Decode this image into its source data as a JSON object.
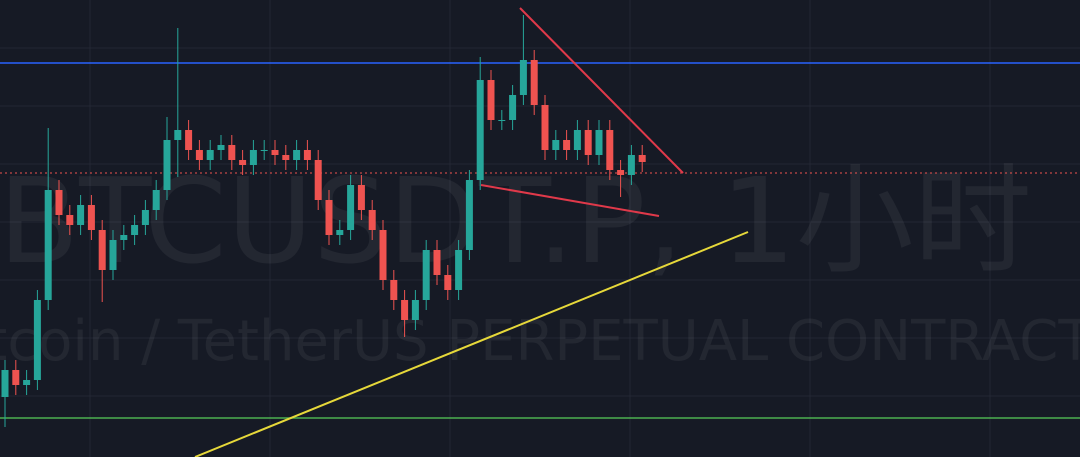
{
  "chart_data": {
    "type": "candlestick",
    "watermark": "BTCUSDT.P, 1小时",
    "watermark_subtitle": "Bitcoin / TetherUS PERPETUAL CONTRACT",
    "up_color": "#26a69a",
    "down_color": "#ef5350",
    "ylim": [
      0,
      457
    ],
    "open": [
      60,
      87,
      72,
      77,
      157,
      267,
      242,
      232,
      252,
      227,
      187,
      217,
      222,
      232,
      247,
      267,
      317,
      327,
      307,
      297,
      307,
      312,
      297,
      292,
      307,
      307,
      302,
      297,
      307,
      297,
      257,
      222,
      227,
      272,
      247,
      227,
      177,
      157,
      137,
      157,
      207,
      182,
      167,
      207,
      277,
      377,
      337,
      337,
      362,
      397,
      352,
      307,
      317,
      307,
      327,
      302,
      327,
      287,
      282,
      302
    ],
    "high": [
      97,
      97,
      87,
      167,
      329,
      277,
      252,
      262,
      262,
      237,
      227,
      232,
      242,
      257,
      277,
      340,
      429,
      337,
      317,
      317,
      322,
      322,
      307,
      317,
      317,
      317,
      312,
      317,
      317,
      307,
      267,
      237,
      282,
      282,
      257,
      237,
      187,
      167,
      167,
      217,
      217,
      192,
      217,
      287,
      400,
      387,
      347,
      372,
      442,
      407,
      362,
      327,
      327,
      337,
      337,
      337,
      337,
      297,
      312,
      312
    ],
    "low": [
      30,
      62,
      62,
      67,
      147,
      232,
      222,
      222,
      217,
      155,
      177,
      207,
      212,
      222,
      237,
      257,
      280,
      297,
      287,
      287,
      297,
      287,
      282,
      282,
      297,
      292,
      287,
      287,
      287,
      247,
      212,
      212,
      217,
      237,
      217,
      167,
      147,
      120,
      127,
      147,
      172,
      157,
      157,
      197,
      267,
      327,
      327,
      327,
      352,
      342,
      297,
      297,
      297,
      297,
      292,
      292,
      277,
      260,
      272,
      285
    ],
    "close": [
      87,
      72,
      77,
      157,
      267,
      242,
      232,
      252,
      227,
      187,
      217,
      222,
      232,
      247,
      267,
      317,
      327,
      307,
      297,
      307,
      312,
      297,
      292,
      307,
      307,
      302,
      297,
      307,
      297,
      257,
      222,
      227,
      272,
      247,
      227,
      177,
      157,
      137,
      157,
      207,
      182,
      167,
      207,
      277,
      377,
      337,
      337,
      362,
      397,
      352,
      307,
      317,
      307,
      327,
      302,
      327,
      287,
      282,
      302,
      295
    ],
    "hlines": [
      {
        "value": 394,
        "color": "#2962ff",
        "style": "solid"
      },
      {
        "value": 284,
        "color": "#ef5350",
        "style": "dotted"
      },
      {
        "value": 39,
        "color": "#4caf50",
        "style": "solid"
      }
    ]
  }
}
